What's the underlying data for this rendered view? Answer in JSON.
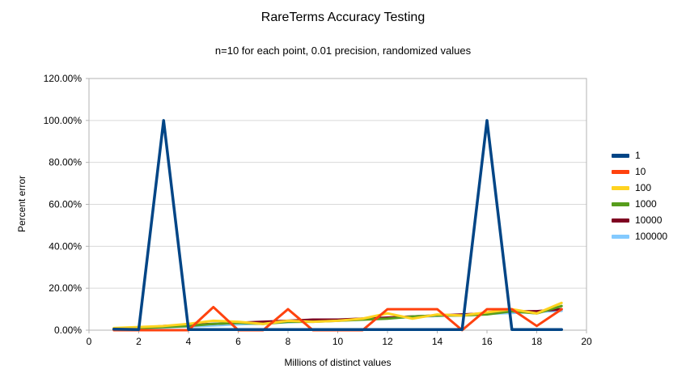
{
  "chart": {
    "title": "RareTerms Accuracy Testing",
    "subtitle": "n=10 for each point, 0.01 precision, randomized values",
    "xlabel": "Millions of distinct values",
    "ylabel": "Percent error"
  },
  "chart_data": {
    "type": "line",
    "title": "RareTerms Accuracy Testing",
    "subtitle": "n=10 for each point, 0.01 precision, randomized values",
    "xlabel": "Millions of distinct values",
    "ylabel": "Percent error",
    "xlim": [
      0,
      20
    ],
    "ylim": [
      0,
      120
    ],
    "grid": true,
    "legend_position": "right",
    "x_ticks": [
      0,
      2,
      4,
      6,
      8,
      10,
      12,
      14,
      16,
      18,
      20
    ],
    "x_tick_labels": [
      "0",
      "2",
      "4",
      "6",
      "8",
      "10",
      "12",
      "14",
      "16",
      "18",
      "20"
    ],
    "y_ticks": [
      0,
      20,
      40,
      60,
      80,
      100,
      120
    ],
    "y_tick_labels": [
      "0.00%",
      "20.00%",
      "40.00%",
      "60.00%",
      "80.00%",
      "100.00%",
      "120.00%"
    ],
    "x": [
      1,
      2,
      3,
      4,
      5,
      6,
      7,
      8,
      9,
      10,
      11,
      12,
      13,
      14,
      15,
      16,
      17,
      18,
      19
    ],
    "series": [
      {
        "name": "1",
        "color": "#004586",
        "values": [
          0.5,
          0.3,
          100,
          0.3,
          0.3,
          0.3,
          0.3,
          0.3,
          0.3,
          0.3,
          0.3,
          0.3,
          0.3,
          0.3,
          0.3,
          100,
          0.3,
          0.3,
          0.3
        ]
      },
      {
        "name": "10",
        "color": "#FF420E",
        "values": [
          0,
          0,
          0,
          0,
          11,
          0,
          0,
          10,
          0,
          0,
          0,
          10,
          10,
          10,
          0,
          10,
          10,
          2,
          10
        ]
      },
      {
        "name": "100",
        "color": "#FFD320",
        "values": [
          1,
          1.5,
          2,
          3,
          4.5,
          4,
          3,
          4.5,
          4,
          4.5,
          5.5,
          8,
          5.5,
          7.5,
          7,
          8.5,
          10,
          8,
          13
        ]
      },
      {
        "name": "1000",
        "color": "#579D1C",
        "values": [
          0.5,
          1,
          1.5,
          2,
          3,
          3.5,
          3,
          4,
          4,
          4.5,
          5,
          5.5,
          6.5,
          7,
          7,
          7.5,
          9,
          8,
          11.5
        ]
      },
      {
        "name": "10000",
        "color": "#7E0021",
        "values": [
          0.5,
          1,
          2,
          2.5,
          3,
          3.5,
          4,
          4.5,
          5,
          5,
          5.5,
          6,
          6.5,
          7,
          7.5,
          8,
          9,
          9,
          10
        ]
      },
      {
        "name": "100000",
        "color": "#83CAFF",
        "values": [
          0.3,
          0.8,
          1.2,
          1.8,
          2.2,
          2.8,
          3.2,
          3.8,
          4.2,
          4.8,
          5.2,
          5.8,
          6.2,
          6.8,
          7.2,
          7.8,
          8.2,
          8.8,
          9.2
        ]
      }
    ]
  }
}
